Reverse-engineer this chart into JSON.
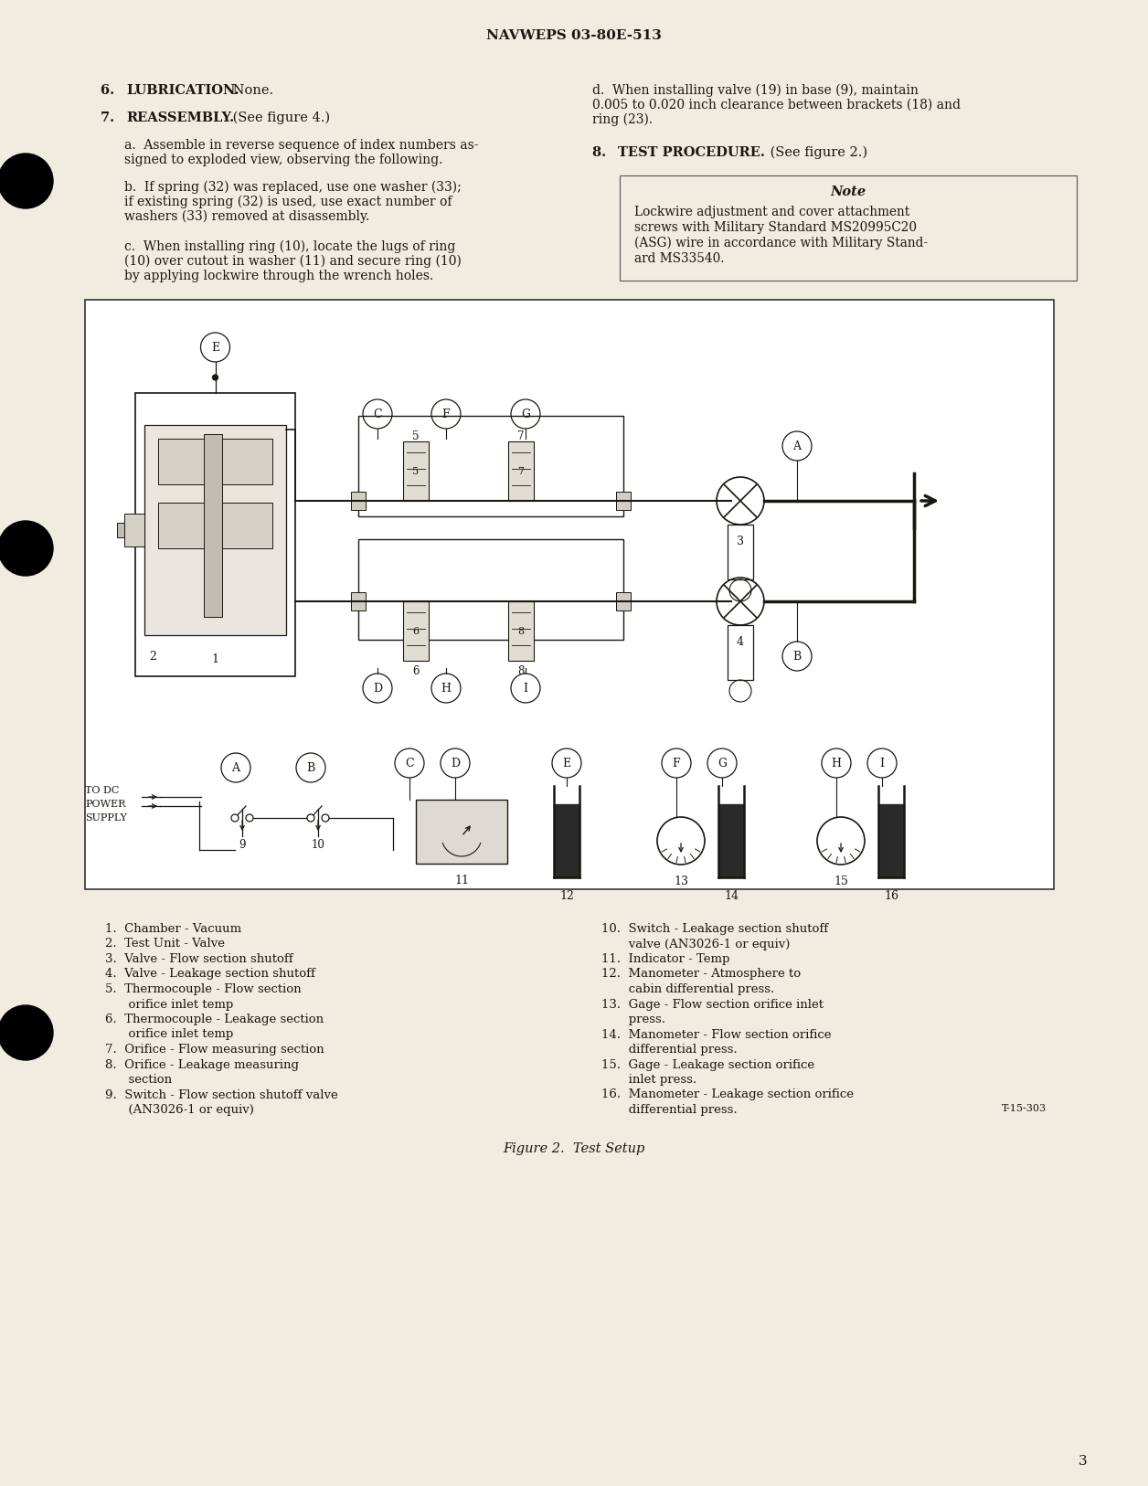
{
  "bg_color": "#f0ece0",
  "page_number": "3",
  "header_text": "NAVWEPS 03-80E-513",
  "figure_caption": "Figure 2.  Test Setup",
  "figure_ref": "T-15-303",
  "legend_left": [
    "1.  Chamber - Vacuum",
    "2.  Test Unit - Valve",
    "3.  Valve - Flow section shutoff",
    "4.  Valve - Leakage section shutoff",
    "5.  Thermocouple - Flow section",
    "      orifice inlet temp",
    "6.  Thermocouple - Leakage section",
    "      orifice inlet temp",
    "7.  Orifice - Flow measuring section",
    "8.  Orifice - Leakage measuring",
    "      section",
    "9.  Switch - Flow section shutoff valve",
    "      (AN3026-1 or equiv)"
  ],
  "legend_right": [
    "10.  Switch - Leakage section shutoff",
    "       valve (AN3026-1 or equiv)",
    "11.  Indicator - Temp",
    "12.  Manometer - Atmosphere to",
    "       cabin differential press.",
    "13.  Gage - Flow section orifice inlet",
    "       press.",
    "14.  Manometer - Flow section orifice",
    "       differential press.",
    "15.  Gage - Leakage section orifice",
    "       inlet press.",
    "16.  Manometer - Leakage section orifice",
    "       differential press."
  ]
}
